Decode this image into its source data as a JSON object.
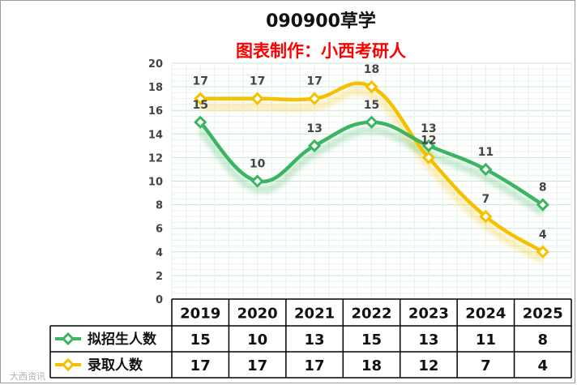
{
  "chart_data": {
    "type": "line",
    "title": "090900草学",
    "subtitle": "图表制作：小西考研人",
    "categories": [
      "2019",
      "2020",
      "2021",
      "2022",
      "2023",
      "2024",
      "2025"
    ],
    "ylim": [
      0,
      20
    ],
    "yticks": [
      0,
      2,
      4,
      6,
      8,
      10,
      12,
      14,
      16,
      18,
      20
    ],
    "grid": true,
    "legend_placement": "data-table",
    "series": [
      {
        "name": "拟招生人数",
        "values": [
          15,
          10,
          13,
          15,
          13,
          11,
          8
        ],
        "color": "#3cb563"
      },
      {
        "name": "录取人数",
        "values": [
          17,
          17,
          17,
          18,
          12,
          7,
          4
        ],
        "color": "#f5c000"
      }
    ]
  },
  "watermark": "大西资讯"
}
